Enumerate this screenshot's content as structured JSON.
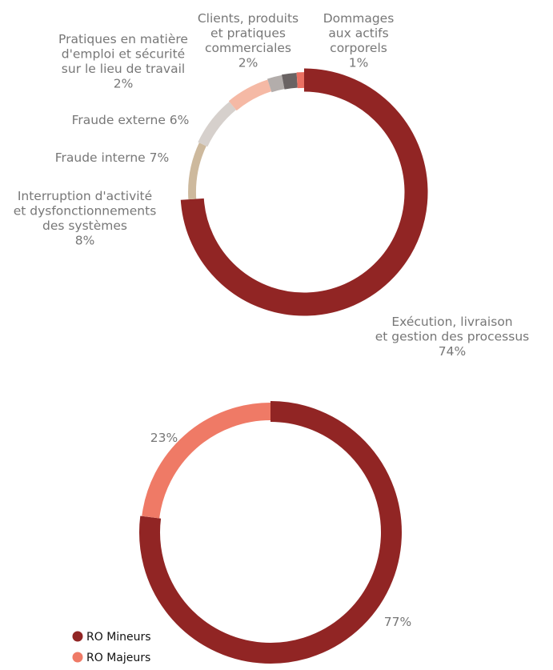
{
  "chart_data": [
    {
      "type": "pie",
      "variant": "donut",
      "start": "12 o'clock",
      "direction": "clockwise",
      "slices": [
        {
          "value": 74,
          "pct": "74%",
          "label": [
            "Exécution, livraison",
            "et gestion des processus"
          ],
          "color": "#912524"
        },
        {
          "value": 8,
          "pct": "8%",
          "label": [
            "Interruption d'activité",
            "et dysfonctionnements",
            "des systèmes"
          ],
          "color": "#cdb99d"
        },
        {
          "value": 7,
          "pct": "7%",
          "label": [
            "Fraude interne"
          ],
          "color": "#d6d0cc"
        },
        {
          "value": 6,
          "pct": "6%",
          "label": [
            "Fraude externe"
          ],
          "color": "#f5b9a5"
        },
        {
          "value": 2,
          "pct": "2%",
          "label": [
            "Pratiques en matière",
            "d'emploi et sécurité",
            "sur le lieu de travail"
          ],
          "color": "#b3adab"
        },
        {
          "value": 2,
          "pct": "2%",
          "label": [
            "Clients, produits",
            "et pratiques",
            "commerciales"
          ],
          "color": "#6a6363"
        },
        {
          "value": 1,
          "pct": "1%",
          "label": [
            "Dommages",
            "aux actifs",
            "corporels"
          ],
          "color": "#ea7062"
        }
      ]
    },
    {
      "type": "pie",
      "variant": "donut",
      "start": "12 o'clock",
      "direction": "clockwise",
      "slices": [
        {
          "name": "RO Mineurs",
          "value": 77,
          "pct": "77%",
          "color": "#912524"
        },
        {
          "name": "RO Majeurs",
          "value": 23,
          "pct": "23%",
          "color": "#ef7a66"
        }
      ],
      "legend": {
        "placement": "bottom-left",
        "items": [
          "RO Mineurs",
          "RO Majeurs"
        ]
      }
    }
  ]
}
